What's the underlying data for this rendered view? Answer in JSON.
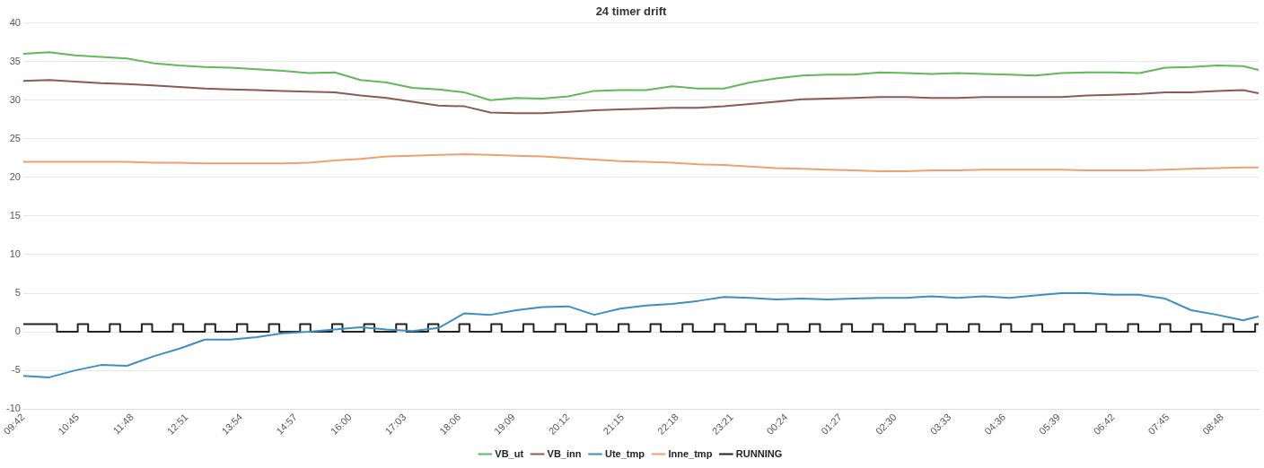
{
  "chart_data": {
    "type": "line",
    "title": "24 timer drift",
    "xlim": [
      "2000-01-01T09:42",
      "2000-01-02T09:30"
    ],
    "xticks": [
      {
        "value": "2000-01-01T09:42",
        "label": "09:42"
      },
      {
        "value": "2000-01-01T10:45",
        "label": "10:45"
      },
      {
        "value": "2000-01-01T11:48",
        "label": "11:48"
      },
      {
        "value": "2000-01-01T12:51",
        "label": "12:51"
      },
      {
        "value": "2000-01-01T13:54",
        "label": "13:54"
      },
      {
        "value": "2000-01-01T14:57",
        "label": "14:57"
      },
      {
        "value": "2000-01-01T16:00",
        "label": "16:00"
      },
      {
        "value": "2000-01-01T17:03",
        "label": "17:03"
      },
      {
        "value": "2000-01-01T18:06",
        "label": "18:06"
      },
      {
        "value": "2000-01-01T19:09",
        "label": "19:09"
      },
      {
        "value": "2000-01-01T20:12",
        "label": "20:12"
      },
      {
        "value": "2000-01-01T21:15",
        "label": "21:15"
      },
      {
        "value": "2000-01-01T22:18",
        "label": "22:18"
      },
      {
        "value": "2000-01-01T23:21",
        "label": "23:21"
      },
      {
        "value": "2000-01-02T00:24",
        "label": "00:24"
      },
      {
        "value": "2000-01-02T01:27",
        "label": "01:27"
      },
      {
        "value": "2000-01-02T02:30",
        "label": "02:30"
      },
      {
        "value": "2000-01-02T03:33",
        "label": "03:33"
      },
      {
        "value": "2000-01-02T04:36",
        "label": "04:36"
      },
      {
        "value": "2000-01-02T05:39",
        "label": "05:39"
      },
      {
        "value": "2000-01-02T06:42",
        "label": "06:42"
      },
      {
        "value": "2000-01-02T07:45",
        "label": "07:45"
      },
      {
        "value": "2000-01-02T08:48",
        "label": "08:48"
      }
    ],
    "ylim": [
      -10,
      40
    ],
    "yticks": [
      -10,
      -5,
      0,
      5,
      10,
      15,
      20,
      25,
      30,
      35,
      40
    ],
    "grid": "y",
    "legend": "bottom",
    "marker": "none",
    "line_style": "solid",
    "x": [
      "2000-01-01T09:42",
      "2000-01-01T10:12",
      "2000-01-01T10:42",
      "2000-01-01T11:12",
      "2000-01-01T11:42",
      "2000-01-01T12:12",
      "2000-01-01T12:42",
      "2000-01-01T13:12",
      "2000-01-01T13:42",
      "2000-01-01T14:12",
      "2000-01-01T14:42",
      "2000-01-01T15:12",
      "2000-01-01T15:42",
      "2000-01-01T16:12",
      "2000-01-01T16:42",
      "2000-01-01T17:12",
      "2000-01-01T17:42",
      "2000-01-01T18:12",
      "2000-01-01T18:42",
      "2000-01-01T19:12",
      "2000-01-01T19:42",
      "2000-01-01T20:12",
      "2000-01-01T20:42",
      "2000-01-01T21:12",
      "2000-01-01T21:42",
      "2000-01-01T22:12",
      "2000-01-01T22:42",
      "2000-01-01T23:12",
      "2000-01-01T23:42",
      "2000-01-02T00:12",
      "2000-01-02T00:42",
      "2000-01-02T01:12",
      "2000-01-02T01:42",
      "2000-01-02T02:12",
      "2000-01-02T02:42",
      "2000-01-02T03:12",
      "2000-01-02T03:42",
      "2000-01-02T04:12",
      "2000-01-02T04:42",
      "2000-01-02T05:12",
      "2000-01-02T05:42",
      "2000-01-02T06:12",
      "2000-01-02T06:42",
      "2000-01-02T07:12",
      "2000-01-02T07:42",
      "2000-01-02T08:12",
      "2000-01-02T08:42",
      "2000-01-02T09:12",
      "2000-01-02T09:30"
    ],
    "series": [
      {
        "name": "VB_ut",
        "color": "#62b85a",
        "values": [
          36.0,
          36.2,
          35.8,
          35.6,
          35.4,
          34.8,
          34.5,
          34.3,
          34.2,
          34.0,
          33.8,
          33.5,
          33.6,
          32.6,
          32.3,
          31.6,
          31.4,
          31.0,
          30.0,
          30.3,
          30.2,
          30.5,
          31.2,
          31.3,
          31.3,
          31.8,
          31.5,
          31.5,
          32.3,
          32.8,
          33.2,
          33.3,
          33.3,
          33.6,
          33.5,
          33.4,
          33.5,
          33.4,
          33.3,
          33.2,
          33.5,
          33.6,
          33.6,
          33.5,
          34.2,
          34.3,
          34.5,
          34.4,
          33.9
        ]
      },
      {
        "name": "VB_inn",
        "color": "#8c5a55",
        "values": [
          32.5,
          32.6,
          32.4,
          32.2,
          32.1,
          31.9,
          31.7,
          31.5,
          31.4,
          31.3,
          31.2,
          31.1,
          31.0,
          30.6,
          30.3,
          29.8,
          29.3,
          29.2,
          28.4,
          28.3,
          28.3,
          28.5,
          28.7,
          28.8,
          28.9,
          29.0,
          29.0,
          29.2,
          29.5,
          29.8,
          30.1,
          30.2,
          30.3,
          30.4,
          30.4,
          30.3,
          30.3,
          30.4,
          30.4,
          30.4,
          30.4,
          30.6,
          30.7,
          30.8,
          31.0,
          31.0,
          31.2,
          31.3,
          30.9
        ]
      },
      {
        "name": "Ute_tmp",
        "color": "#3b8fc2",
        "values": [
          -5.7,
          -5.9,
          -5.0,
          -4.3,
          -4.4,
          -3.2,
          -2.2,
          -1.0,
          -1.0,
          -0.7,
          -0.2,
          0.0,
          0.3,
          0.6,
          0.3,
          0.1,
          0.5,
          2.4,
          2.2,
          2.8,
          3.2,
          3.3,
          2.2,
          3.0,
          3.4,
          3.6,
          4.0,
          4.5,
          4.4,
          4.2,
          4.3,
          4.2,
          4.3,
          4.4,
          4.4,
          4.6,
          4.4,
          4.6,
          4.4,
          4.7,
          5.0,
          5.0,
          4.8,
          4.8,
          4.3,
          2.8,
          2.2,
          1.5,
          2.0
        ]
      },
      {
        "name": "Inne_tmp",
        "color": "#f0a070",
        "values": [
          22.0,
          22.0,
          22.0,
          22.0,
          22.0,
          21.9,
          21.9,
          21.8,
          21.8,
          21.8,
          21.8,
          21.9,
          22.2,
          22.4,
          22.7,
          22.8,
          22.9,
          23.0,
          22.9,
          22.8,
          22.7,
          22.5,
          22.3,
          22.1,
          22.0,
          21.9,
          21.7,
          21.6,
          21.4,
          21.2,
          21.1,
          21.0,
          20.9,
          20.8,
          20.8,
          20.9,
          20.9,
          21.0,
          21.0,
          21.0,
          21.0,
          20.9,
          20.9,
          20.9,
          21.0,
          21.1,
          21.2,
          21.3,
          21.3
        ]
      },
      {
        "name": "RUNNING",
        "type": "step",
        "color": "#222222",
        "x": [
          "2000-01-01T09:42",
          "2000-01-01T10:21",
          "2000-01-01T10:45",
          "2000-01-01T10:57",
          "2000-01-01T11:22",
          "2000-01-01T11:34",
          "2000-01-01T11:59",
          "2000-01-01T12:11",
          "2000-01-01T12:35",
          "2000-01-01T12:47",
          "2000-01-01T13:12",
          "2000-01-01T13:24",
          "2000-01-01T13:49",
          "2000-01-01T14:01",
          "2000-01-01T14:26",
          "2000-01-01T14:38",
          "2000-01-01T15:02",
          "2000-01-01T15:14",
          "2000-01-01T15:39",
          "2000-01-01T15:51",
          "2000-01-01T16:16",
          "2000-01-01T16:28",
          "2000-01-01T16:53",
          "2000-01-01T17:05",
          "2000-01-01T17:30",
          "2000-01-01T17:42",
          "2000-01-01T18:06",
          "2000-01-01T18:18",
          "2000-01-01T18:43",
          "2000-01-01T18:55",
          "2000-01-01T19:20",
          "2000-01-01T19:32",
          "2000-01-01T19:57",
          "2000-01-01T20:09",
          "2000-01-01T20:33",
          "2000-01-01T20:45",
          "2000-01-01T21:10",
          "2000-01-01T21:22",
          "2000-01-01T21:47",
          "2000-01-01T21:59",
          "2000-01-01T22:24",
          "2000-01-01T22:36",
          "2000-01-01T23:01",
          "2000-01-01T23:13",
          "2000-01-01T23:37",
          "2000-01-01T23:49",
          "2000-01-02T00:14",
          "2000-01-02T00:26",
          "2000-01-02T00:51",
          "2000-01-02T01:03",
          "2000-01-02T01:28",
          "2000-01-02T01:40",
          "2000-01-02T02:04",
          "2000-01-02T02:16",
          "2000-01-02T02:41",
          "2000-01-02T02:53",
          "2000-01-02T03:18",
          "2000-01-02T03:30",
          "2000-01-02T03:55",
          "2000-01-02T04:07",
          "2000-01-02T04:32",
          "2000-01-02T04:44",
          "2000-01-02T05:08",
          "2000-01-02T05:20",
          "2000-01-02T05:45",
          "2000-01-02T05:57",
          "2000-01-02T06:22",
          "2000-01-02T06:34",
          "2000-01-02T06:59",
          "2000-01-02T07:11",
          "2000-01-02T07:36",
          "2000-01-02T07:48",
          "2000-01-02T08:12",
          "2000-01-02T08:24",
          "2000-01-02T08:49",
          "2000-01-02T09:01",
          "2000-01-02T09:26",
          "2000-01-02T09:30"
        ],
        "values": [
          1,
          0,
          1,
          0,
          1,
          0,
          1,
          0,
          1,
          0,
          1,
          0,
          1,
          0,
          1,
          0,
          1,
          0,
          1,
          0,
          1,
          0,
          1,
          0,
          1,
          0,
          1,
          0,
          1,
          0,
          1,
          0,
          1,
          0,
          1,
          0,
          1,
          0,
          1,
          0,
          1,
          0,
          1,
          0,
          1,
          0,
          1,
          0,
          1,
          0,
          1,
          0,
          1,
          0,
          1,
          0,
          1,
          0,
          1,
          0,
          1,
          0,
          1,
          0,
          1,
          0,
          1,
          0,
          1,
          0,
          1,
          0,
          1,
          0,
          1,
          0,
          1,
          1
        ]
      }
    ]
  }
}
